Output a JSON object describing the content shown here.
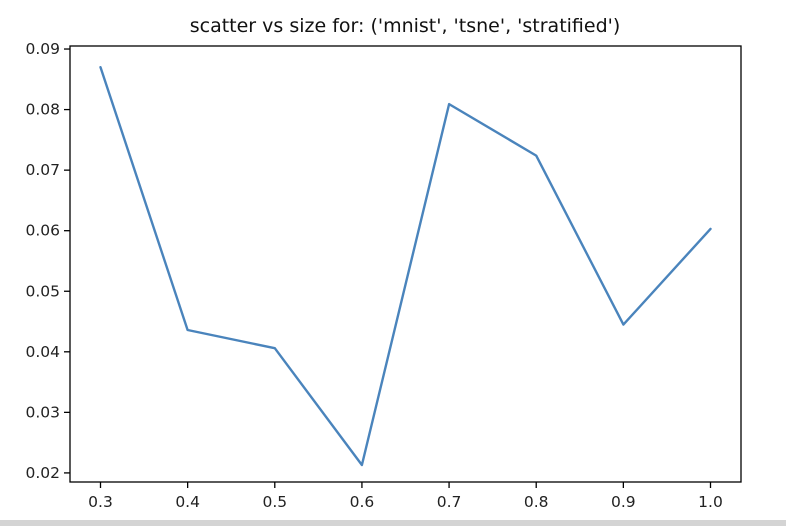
{
  "chart_data": {
    "type": "line",
    "title": "scatter vs size for: ('mnist', 'tsne', 'stratified')",
    "xlabel": "",
    "ylabel": "",
    "x": [
      0.3,
      0.4,
      0.5,
      0.6,
      0.7,
      0.8,
      0.9,
      1.0
    ],
    "series": [
      {
        "values": [
          0.087,
          0.0436,
          0.0406,
          0.0213,
          0.0809,
          0.0724,
          0.0445,
          0.0603
        ],
        "color": "#4a84bc"
      }
    ],
    "xticks": [
      "0.3",
      "0.4",
      "0.5",
      "0.6",
      "0.7",
      "0.8",
      "0.9",
      "1.0"
    ],
    "yticks": [
      "0.02",
      "0.03",
      "0.04",
      "0.05",
      "0.06",
      "0.07",
      "0.08",
      "0.09"
    ],
    "xlim": [
      0.265,
      1.035
    ],
    "ylim": [
      0.0185,
      0.0905
    ],
    "grid": false,
    "legend": "none"
  }
}
